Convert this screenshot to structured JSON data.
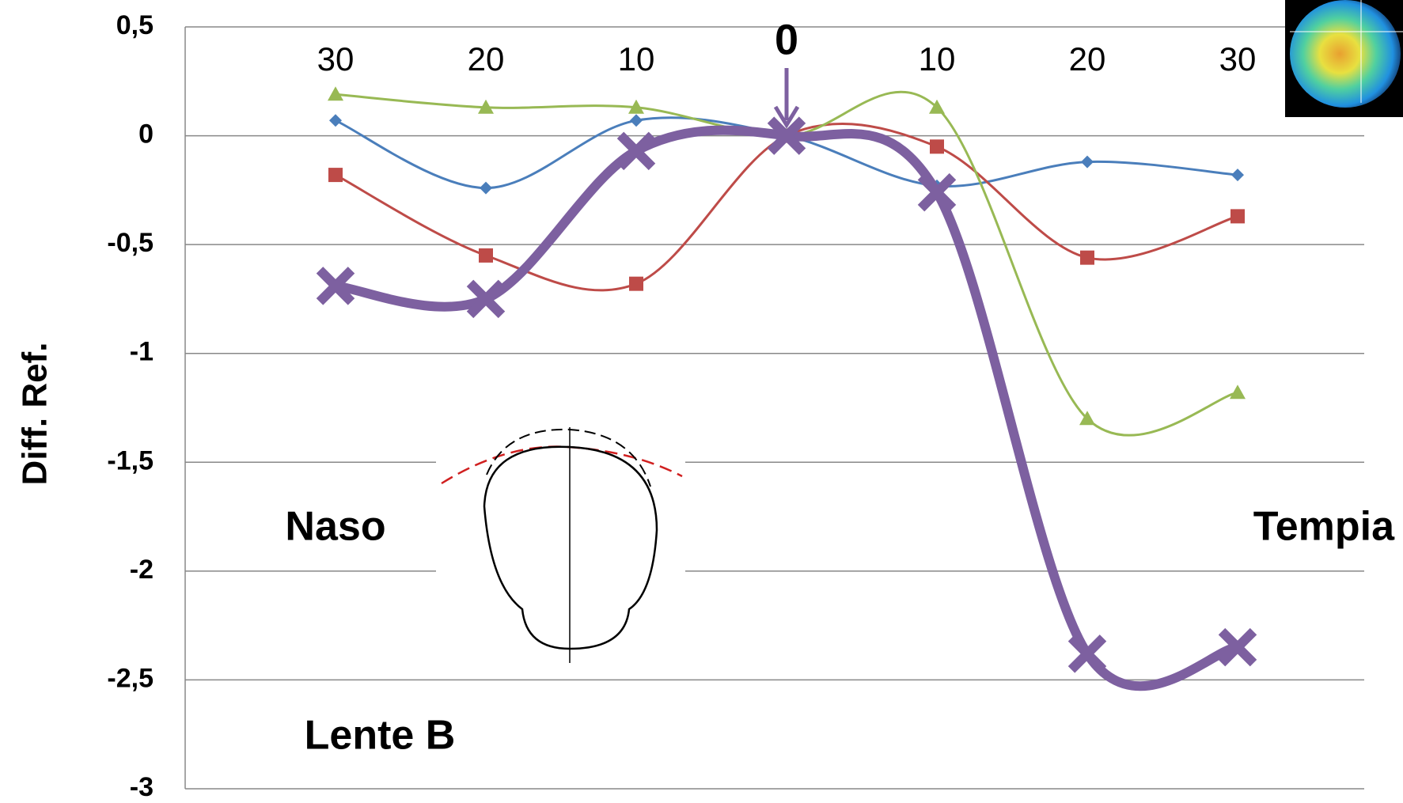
{
  "chart_data": {
    "type": "line",
    "y_label": "Diff. Ref.",
    "categories": [
      "30",
      "20",
      "10",
      "0",
      "10",
      "20",
      "30"
    ],
    "series": [
      {
        "color": "#4a7ebb",
        "marker": "diamond",
        "values": [
          0.07,
          -0.24,
          0.07,
          0,
          -0.23,
          -0.12,
          -0.18
        ]
      },
      {
        "color": "#be4b48",
        "marker": "square",
        "values": [
          -0.18,
          -0.55,
          -0.68,
          0,
          -0.05,
          -0.56,
          -0.37
        ]
      },
      {
        "color": "#98b954",
        "marker": "triangle",
        "values": [
          0.19,
          0.13,
          0.13,
          0,
          0.13,
          -1.3,
          -1.18
        ]
      },
      {
        "color": "#7d60a0",
        "marker": "x",
        "values": [
          -0.69,
          -0.75,
          -0.07,
          0,
          -0.26,
          -2.38,
          -2.35
        ]
      }
    ],
    "ylim": [
      -3,
      0.5
    ],
    "yticks": [
      {
        "value": -3,
        "label": "-3"
      },
      {
        "value": -2.5,
        "label": "-2,5"
      },
      -2,
      {
        "value": -1.5,
        "label": "-1,5"
      },
      -1,
      {
        "value": -0.5,
        "label": "-0,5"
      },
      0,
      {
        "value": 0.5,
        "label": "0,5"
      }
    ],
    "grid": true,
    "annotations": {
      "left": "Naso",
      "right": "Tempia",
      "lens": "Lente B"
    }
  }
}
